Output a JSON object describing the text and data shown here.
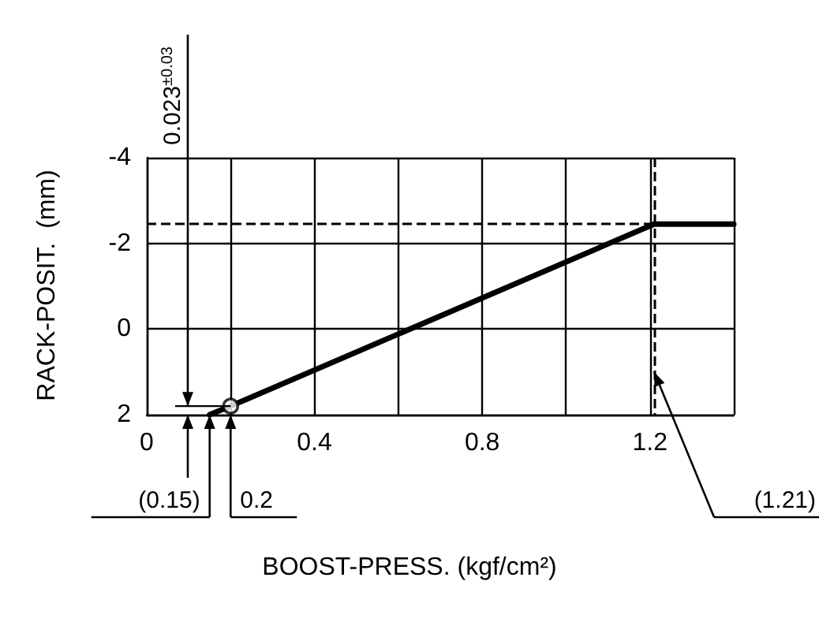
{
  "chart_data": {
    "type": "line",
    "xlabel": "BOOST-PRESS. (kgf/cm²)",
    "ylabel": "RACK-POSIT.  (mm)",
    "series": [
      {
        "color": "#000000",
        "x": [
          0.15,
          0.2,
          1.21,
          1.4
        ],
        "values": [
          2,
          1.8,
          -2.45,
          -2.45
        ],
        "marker": "none"
      },
      {
        "type": "scatter",
        "color": "#000000",
        "x": [
          0.2
        ],
        "values": [
          1.8
        ],
        "marker": "circle"
      }
    ],
    "xlim": [
      0,
      1.4
    ],
    "xticks": [
      0,
      {
        "value": 0.2,
        "label": null
      },
      0.4,
      {
        "value": 0.6,
        "label": null
      },
      0.8,
      {
        "value": 1.0,
        "label": null
      },
      1.2,
      {
        "value": 1.4,
        "label": null
      }
    ],
    "ylim": [
      2,
      -4
    ],
    "yticks": [
      2,
      0,
      -2,
      -4
    ],
    "grid": true,
    "ref_lines": [
      {
        "axis": "y",
        "value": -2.45,
        "line_style": "dashed"
      },
      {
        "axis": "x",
        "value": 1.21,
        "line_style": "dashed"
      }
    ],
    "annotations": [
      "0.023$^{±0.03}$",
      {
        "text": "(0.15)",
        "x": 0.15,
        "y": 2
      },
      {
        "text": "0.2",
        "x": 0.2,
        "y": 2
      },
      "(1.21)"
    ]
  }
}
